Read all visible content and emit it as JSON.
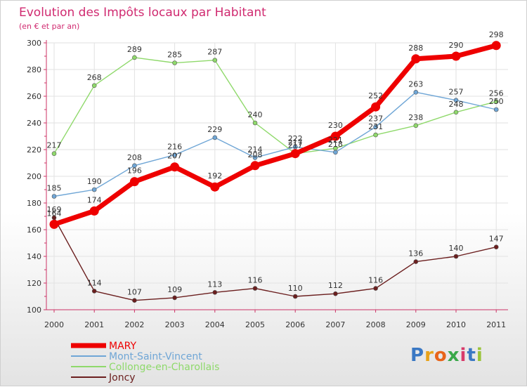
{
  "chart_data": {
    "type": "line",
    "title": "Evolution des Impôts locaux par Habitant",
    "subtitle": "(en € et par an)",
    "xlabel": "",
    "ylabel": "",
    "x": [
      "2000",
      "2001",
      "2002",
      "2003",
      "2004",
      "2005",
      "2006",
      "2007",
      "2008",
      "2009",
      "2010",
      "2011"
    ],
    "ylim": [
      100,
      300
    ],
    "yticks": [
      "100",
      "120",
      "140",
      "160",
      "180",
      "200",
      "220",
      "240",
      "260",
      "280",
      "300"
    ],
    "grid": true,
    "legend_position": "bottom-left",
    "series": [
      {
        "name": "Joncy",
        "color": "#6b1e1e",
        "values": [
          169,
          114,
          107,
          109,
          113,
          116,
          110,
          112,
          116,
          136,
          140,
          147
        ],
        "labels": [
          "169",
          "114",
          "107",
          "109",
          "113",
          "116",
          "110",
          "112",
          "116",
          "136",
          "140",
          "147"
        ]
      },
      {
        "name": "Collonge-en-Charollais",
        "color": "#8fd96b",
        "values": [
          217,
          268,
          289,
          285,
          287,
          240,
          217,
          221,
          231,
          238,
          248,
          256
        ],
        "labels": [
          "217",
          "268",
          "289",
          "285",
          "287",
          "240",
          "217",
          "221",
          "231",
          "238",
          "248",
          "256"
        ]
      },
      {
        "name": "Mont-Saint-Vincent",
        "color": "#6fa6d6",
        "values": [
          185,
          190,
          208,
          216,
          229,
          214,
          222,
          218,
          237,
          263,
          257,
          250
        ],
        "labels": [
          "185",
          "190",
          "208",
          "216",
          "229",
          "214",
          "222",
          "218",
          "237",
          "263",
          "257",
          "250"
        ]
      },
      {
        "name": "MARY",
        "color": "#ee0000",
        "values": [
          164,
          174,
          196,
          207,
          192,
          208,
          217,
          230,
          252,
          288,
          290,
          298
        ],
        "labels": [
          "164",
          "174",
          "196",
          "207",
          "192",
          "208",
          "217",
          "230",
          "252",
          "288",
          "290",
          "298"
        ]
      }
    ],
    "legend": [
      {
        "name": "MARY",
        "color": "#ee0000"
      },
      {
        "name": "Mont-Saint-Vincent",
        "color": "#6fa6d6"
      },
      {
        "name": "Collonge-en-Charollais",
        "color": "#8fd96b"
      },
      {
        "name": "Joncy",
        "color": "#6b1e1e"
      }
    ]
  },
  "logo": {
    "letters": [
      "P",
      "r",
      "o",
      "x",
      "i",
      "t",
      "i"
    ],
    "colors": [
      "#3a78c4",
      "#e8a21a",
      "#e8641a",
      "#3aa84a",
      "#d83a6a",
      "#3a78c4",
      "#9ac43a"
    ]
  }
}
